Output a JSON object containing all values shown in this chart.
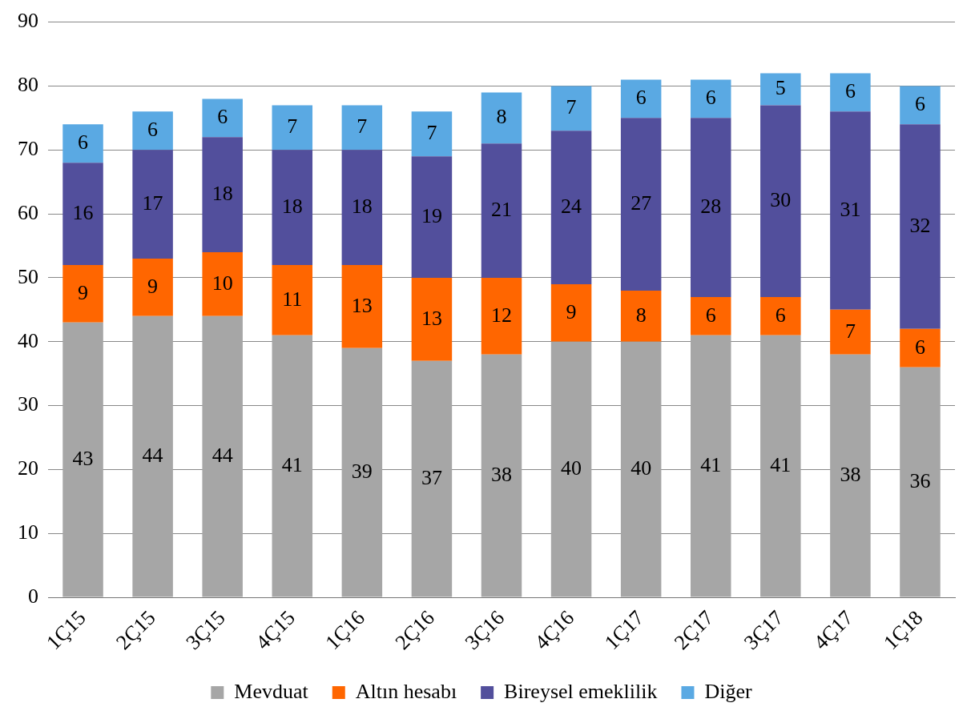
{
  "chart_data": {
    "type": "bar",
    "stacked": true,
    "categories": [
      "1Ç15",
      "2Ç15",
      "3Ç15",
      "4Ç15",
      "1Ç16",
      "2Ç16",
      "3Ç16",
      "4Ç16",
      "1Ç17",
      "2Ç17",
      "3Ç17",
      "4Ç17",
      "1Ç18"
    ],
    "series": [
      {
        "name": "Mevduat",
        "color": "#a6a6a6",
        "values": [
          43,
          44,
          44,
          41,
          39,
          37,
          38,
          40,
          40,
          41,
          41,
          38,
          36
        ]
      },
      {
        "name": "Altın hesabı",
        "color": "#ff6600",
        "values": [
          9,
          9,
          10,
          11,
          13,
          13,
          12,
          9,
          8,
          6,
          6,
          7,
          6
        ]
      },
      {
        "name": "Bireysel emeklilik",
        "color": "#524f9c",
        "values": [
          16,
          17,
          18,
          18,
          18,
          19,
          21,
          24,
          27,
          28,
          30,
          31,
          32
        ]
      },
      {
        "name": "Diğer",
        "color": "#5aa9e3",
        "values": [
          6,
          6,
          6,
          7,
          7,
          7,
          8,
          7,
          6,
          6,
          5,
          6,
          6
        ]
      }
    ],
    "ylim": [
      0,
      90
    ],
    "yticks": [
      0,
      10,
      20,
      30,
      40,
      50,
      60,
      70,
      80,
      90
    ],
    "grid": "y",
    "legend": "bottom",
    "data_labels": true
  }
}
